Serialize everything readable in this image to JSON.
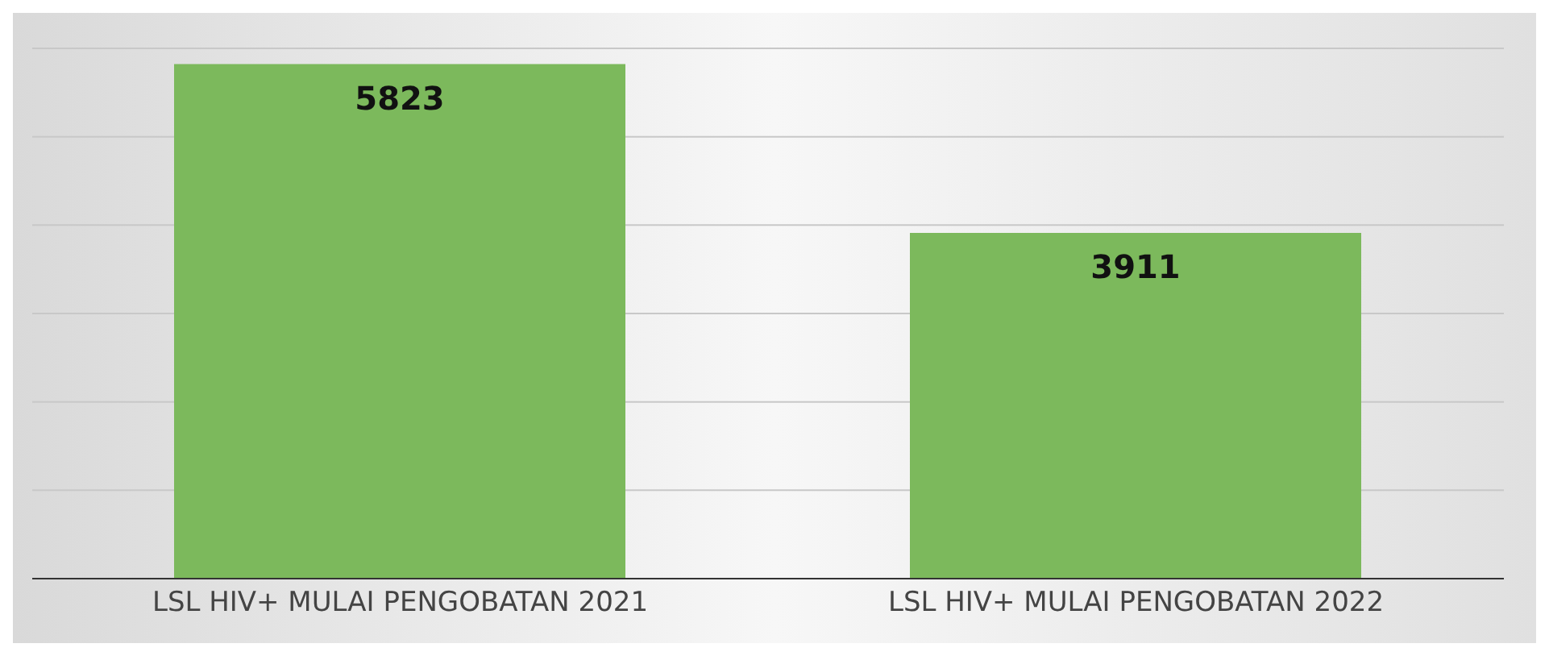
{
  "chart_data": {
    "type": "bar",
    "categories": [
      "LSL HIV+ MULAI PENGOBATAN 2021",
      "LSL HIV+ MULAI PENGOBATAN 2022"
    ],
    "values": [
      5823,
      3911
    ],
    "color": "#7cb95c",
    "ylim": [
      0,
      6000
    ],
    "yticks": [
      0,
      1000,
      2000,
      3000,
      4000,
      5000,
      6000
    ],
    "grid": "y",
    "tick_labels": "x",
    "data_labels": true
  }
}
